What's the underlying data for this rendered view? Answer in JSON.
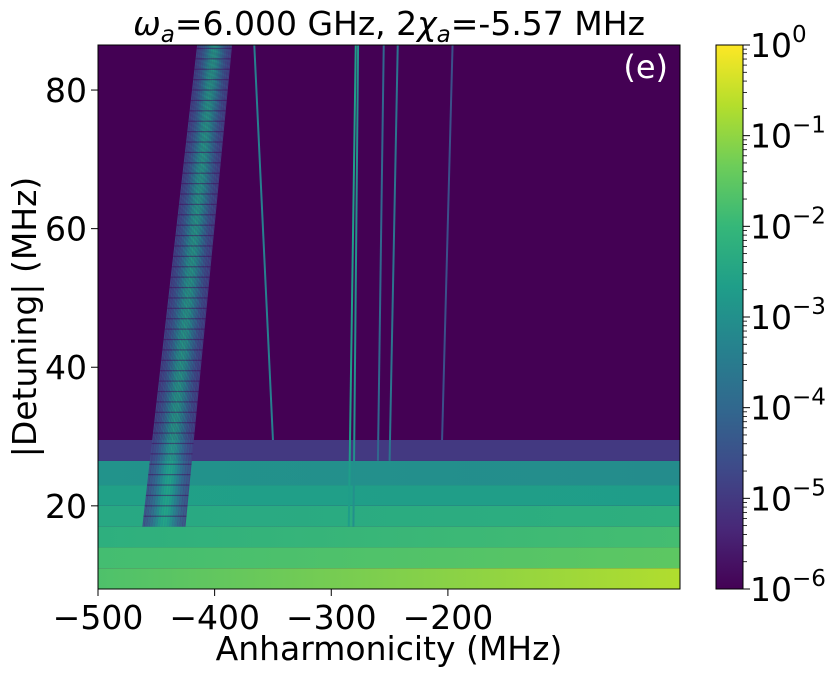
{
  "chart_data": {
    "type": "heatmap",
    "title_parts": [
      {
        "text": "ω",
        "style": "italic"
      },
      {
        "text": "a",
        "style": "italic-sub"
      },
      {
        "text": "=6.000 GHz, 2",
        "style": "normal"
      },
      {
        "text": "χ",
        "style": "italic"
      },
      {
        "text": "a",
        "style": "italic-sub"
      },
      {
        "text": "=-5.57 MHz",
        "style": "normal"
      }
    ],
    "xlabel": "Anharmonicity (MHz)",
    "ylabel": "|Detuning| (MHz)",
    "panel_label": "(e)",
    "xlim": [
      -500,
      -1
    ],
    "ylim": [
      8,
      86.5
    ],
    "xticks": [
      -500,
      -400,
      -300,
      -200
    ],
    "xtick_labels": [
      "−500",
      "−400",
      "−300",
      "−200"
    ],
    "yticks": [
      20,
      40,
      60,
      80
    ],
    "ytick_labels": [
      "20",
      "40",
      "60",
      "80"
    ],
    "colorbar": {
      "scale": "log",
      "colormap": "viridis",
      "range": [
        1e-06,
        1
      ],
      "ticks": [
        {
          "base": "10",
          "exp": "0"
        },
        {
          "base": "10",
          "exp": "−1"
        },
        {
          "base": "10",
          "exp": "−2"
        },
        {
          "base": "10",
          "exp": "−3"
        },
        {
          "base": "10",
          "exp": "−4"
        },
        {
          "base": "10",
          "exp": "−5"
        },
        {
          "base": "10",
          "exp": "−6"
        }
      ]
    },
    "bands": [
      {
        "y": [
          8.0,
          11.0
        ],
        "value_start": 0.02,
        "value_end": 0.2
      },
      {
        "y": [
          11.0,
          14.0
        ],
        "value_start": 0.015,
        "value_end": 0.03
      },
      {
        "y": [
          14.0,
          17.0
        ],
        "value_start": 0.006,
        "value_end": 0.015
      },
      {
        "y": [
          17.0,
          20.0
        ],
        "value_start": 0.004,
        "value_end": 0.006
      },
      {
        "y": [
          20.0,
          23.0
        ],
        "value_start": 0.0025,
        "value_end": 0.002
      },
      {
        "y": [
          23.0,
          26.5
        ],
        "value_start": 0.0012,
        "value_end": 0.0008
      },
      {
        "y": [
          26.5,
          29.5
        ],
        "value_start": 1e-05,
        "value_end": 1e-05
      }
    ],
    "background_value": 1e-06,
    "resonance_fan": {
      "y_range": [
        17.0,
        86.5
      ],
      "x_at_bottom": [
        -462,
        -425
      ],
      "x_at_top": [
        -415,
        -385
      ],
      "peak_value": 0.003,
      "edge_value": 2e-05
    },
    "resonance_lines": [
      {
        "x": [
          -350,
          -366
        ],
        "y": [
          29.5,
          86.5
        ],
        "value": 0.0004
      },
      {
        "x": [
          -285,
          -279
        ],
        "y": [
          17.0,
          86.5
        ],
        "value": 0.002
      },
      {
        "x": [
          -281,
          -277
        ],
        "y": [
          17.0,
          86.5
        ],
        "value": 0.001
      },
      {
        "x": [
          -260,
          -255
        ],
        "y": [
          26.5,
          86.5
        ],
        "value": 0.0001
      },
      {
        "x": [
          -250,
          -243
        ],
        "y": [
          26.5,
          86.5
        ],
        "value": 0.0002
      },
      {
        "x": [
          -205,
          -196
        ],
        "y": [
          29.5,
          86.5
        ],
        "value": 3e-05
      }
    ]
  }
}
